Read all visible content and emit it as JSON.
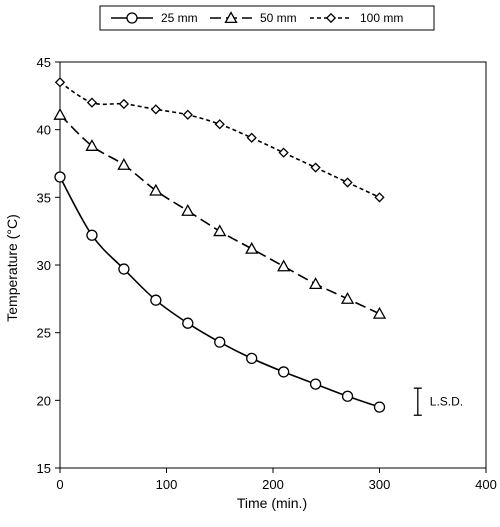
{
  "chart_data": {
    "type": "line",
    "xlabel": "Time (min.)",
    "ylabel": "Temperature (°C)",
    "xlim": [
      0,
      400
    ],
    "ylim": [
      15,
      45
    ],
    "xticks": [
      0,
      100,
      200,
      300,
      400
    ],
    "yticks": [
      15,
      20,
      25,
      30,
      35,
      40,
      45
    ],
    "grid": false,
    "legend_position": "top",
    "series": [
      {
        "name": "25 mm",
        "marker": "circle",
        "line_style": "solid",
        "x": [
          0,
          30,
          60,
          90,
          120,
          150,
          180,
          210,
          240,
          270,
          300
        ],
        "y": [
          36.5,
          32.2,
          29.7,
          27.4,
          25.7,
          24.3,
          23.1,
          22.1,
          21.2,
          20.3,
          19.5
        ]
      },
      {
        "name": "50 mm",
        "marker": "triangle",
        "line_style": "long-dash",
        "x": [
          0,
          30,
          60,
          90,
          120,
          150,
          180,
          210,
          240,
          270,
          300
        ],
        "y": [
          41.1,
          38.8,
          37.4,
          35.5,
          34.0,
          32.5,
          31.2,
          29.9,
          28.6,
          27.5,
          26.4
        ]
      },
      {
        "name": "100 mm",
        "marker": "diamond",
        "line_style": "short-dash",
        "x": [
          0,
          30,
          60,
          90,
          120,
          150,
          180,
          210,
          240,
          270,
          300
        ],
        "y": [
          43.5,
          42.0,
          41.9,
          41.5,
          41.1,
          40.4,
          39.4,
          38.3,
          37.2,
          36.1,
          35.0
        ]
      }
    ],
    "annotation": {
      "text": "L.S.D.",
      "x": 320,
      "y_low": 18.9,
      "y_high": 20.9
    }
  }
}
